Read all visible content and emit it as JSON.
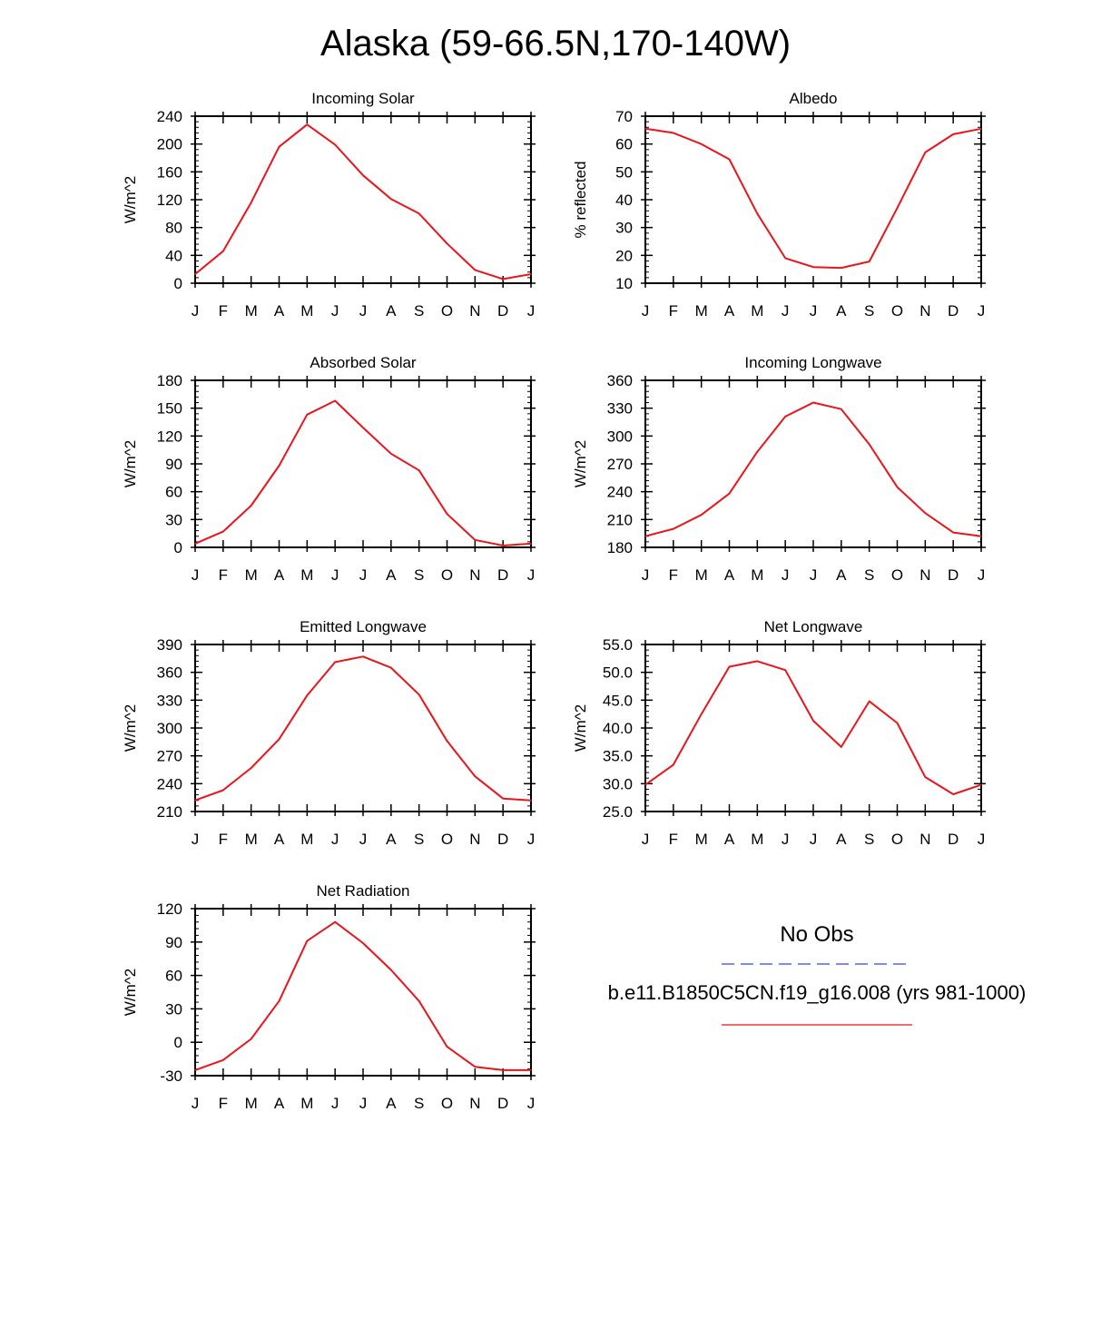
{
  "title": "Alaska (59-66.5N,170-140W)",
  "colors": {
    "model": "#e8151b",
    "obs": "#3344ee",
    "axis": "#000000"
  },
  "legend": {
    "obs_label": "No Obs",
    "model_label": "b.e11.B1850C5CN.f19_g16.008 (yrs 981-1000)"
  },
  "chart_data": [
    {
      "type": "line",
      "title": "Incoming Solar",
      "ylabel": "W/m^2",
      "xlabel": "",
      "categories": [
        "J",
        "F",
        "M",
        "A",
        "M",
        "J",
        "J",
        "A",
        "S",
        "O",
        "N",
        "D",
        "J"
      ],
      "ylim": [
        0,
        240
      ],
      "yticks": [
        "0",
        "40",
        "80",
        "120",
        "160",
        "200",
        "240"
      ],
      "series": [
        {
          "name": "b.e11.B1850C5CN.f19_g16.008 (yrs 981-1000)",
          "values": [
            13,
            46,
            116,
            196,
            228,
            199,
            155,
            121,
            100,
            57,
            19,
            6,
            13
          ]
        }
      ]
    },
    {
      "type": "line",
      "title": "Albedo",
      "ylabel": "% reflected",
      "xlabel": "",
      "categories": [
        "J",
        "F",
        "M",
        "A",
        "M",
        "J",
        "J",
        "A",
        "S",
        "O",
        "N",
        "D",
        "J"
      ],
      "ylim": [
        10,
        70
      ],
      "yticks": [
        "10",
        "20",
        "30",
        "40",
        "50",
        "60",
        "70"
      ],
      "series": [
        {
          "name": "b.e11.B1850C5CN.f19_g16.008 (yrs 981-1000)",
          "values": [
            65.5,
            64,
            60,
            54.5,
            35,
            19,
            15.8,
            15.5,
            17.8,
            37,
            57,
            63.5,
            65.5
          ]
        }
      ]
    },
    {
      "type": "line",
      "title": "Absorbed Solar",
      "ylabel": "W/m^2",
      "xlabel": "",
      "categories": [
        "J",
        "F",
        "M",
        "A",
        "M",
        "J",
        "J",
        "A",
        "S",
        "O",
        "N",
        "D",
        "J"
      ],
      "ylim": [
        0,
        180
      ],
      "yticks": [
        "0",
        "30",
        "60",
        "90",
        "120",
        "150",
        "180"
      ],
      "series": [
        {
          "name": "b.e11.B1850C5CN.f19_g16.008 (yrs 981-1000)",
          "values": [
            4,
            17,
            45,
            88,
            143,
            158,
            129,
            101,
            83,
            36,
            8,
            2,
            4
          ]
        }
      ]
    },
    {
      "type": "line",
      "title": "Incoming Longwave",
      "ylabel": "W/m^2",
      "xlabel": "",
      "categories": [
        "J",
        "F",
        "M",
        "A",
        "M",
        "J",
        "J",
        "A",
        "S",
        "O",
        "N",
        "D",
        "J"
      ],
      "ylim": [
        180,
        360
      ],
      "yticks": [
        "180",
        "210",
        "240",
        "270",
        "300",
        "330",
        "360"
      ],
      "series": [
        {
          "name": "b.e11.B1850C5CN.f19_g16.008 (yrs 981-1000)",
          "values": [
            192,
            200,
            215,
            238,
            283,
            321,
            336,
            329,
            291,
            245,
            217,
            196,
            192
          ]
        }
      ]
    },
    {
      "type": "line",
      "title": "Emitted Longwave",
      "ylabel": "W/m^2",
      "xlabel": "",
      "categories": [
        "J",
        "F",
        "M",
        "A",
        "M",
        "J",
        "J",
        "A",
        "S",
        "O",
        "N",
        "D",
        "J"
      ],
      "ylim": [
        210,
        390
      ],
      "yticks": [
        "210",
        "240",
        "270",
        "300",
        "330",
        "360",
        "390"
      ],
      "series": [
        {
          "name": "b.e11.B1850C5CN.f19_g16.008 (yrs 981-1000)",
          "values": [
            222,
            233,
            257,
            288,
            335,
            371,
            377,
            365,
            336,
            286,
            248,
            224,
            222
          ]
        }
      ]
    },
    {
      "type": "line",
      "title": "Net Longwave",
      "ylabel": "W/m^2",
      "xlabel": "",
      "categories": [
        "J",
        "F",
        "M",
        "A",
        "M",
        "J",
        "J",
        "A",
        "S",
        "O",
        "N",
        "D",
        "J"
      ],
      "ylim": [
        25,
        55
      ],
      "yticks": [
        "25.0",
        "30.0",
        "35.0",
        "40.0",
        "45.0",
        "50.0",
        "55.0"
      ],
      "series": [
        {
          "name": "b.e11.B1850C5CN.f19_g16.008 (yrs 981-1000)",
          "values": [
            29.8,
            33.4,
            42.5,
            51.0,
            52.0,
            50.4,
            41.3,
            36.6,
            44.8,
            40.9,
            31.2,
            28.1,
            29.8
          ]
        }
      ]
    },
    {
      "type": "line",
      "title": "Net Radiation",
      "ylabel": "W/m^2",
      "xlabel": "",
      "categories": [
        "J",
        "F",
        "M",
        "A",
        "M",
        "J",
        "J",
        "A",
        "S",
        "O",
        "N",
        "D",
        "J"
      ],
      "ylim": [
        -30,
        120
      ],
      "yticks": [
        "-30",
        "0",
        "30",
        "60",
        "90",
        "120"
      ],
      "series": [
        {
          "name": "b.e11.B1850C5CN.f19_g16.008 (yrs 981-1000)",
          "values": [
            -25,
            -16,
            3,
            37,
            91,
            108,
            89,
            65,
            37,
            -4,
            -22,
            -25,
            -25
          ]
        }
      ]
    }
  ]
}
